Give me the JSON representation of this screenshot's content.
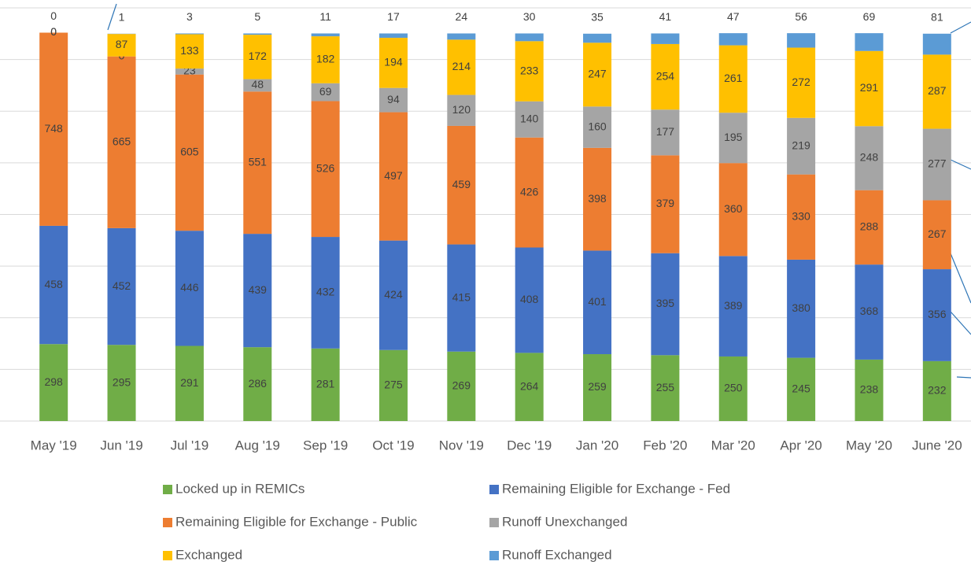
{
  "chart_data": {
    "type": "stacked_bar",
    "categories": [
      "May '19",
      "Jun '19",
      "Jul '19",
      "Aug '19",
      "Sep '19",
      "Oct '19",
      "Nov '19",
      "Dec '19",
      "Jan '20",
      "Feb '20",
      "Mar '20",
      "Apr '20",
      "May '20",
      "June '20"
    ],
    "series": [
      {
        "name": "Locked up in REMICs",
        "color": "#70ad47",
        "values": [
          298,
          295,
          291,
          286,
          281,
          275,
          269,
          264,
          259,
          255,
          250,
          245,
          238,
          232
        ]
      },
      {
        "name": "Remaining Eligible for Exchange - Fed",
        "color": "#4472c4",
        "values": [
          458,
          452,
          446,
          439,
          432,
          424,
          415,
          408,
          401,
          395,
          389,
          380,
          368,
          356
        ]
      },
      {
        "name": "Remaining Eligible for Exchange - Public",
        "color": "#ed7d31",
        "values": [
          748,
          665,
          605,
          551,
          526,
          497,
          459,
          426,
          398,
          379,
          360,
          330,
          288,
          267
        ]
      },
      {
        "name": "Runoff Unexchanged",
        "color": "#a5a5a5",
        "values": [
          0,
          0,
          23,
          48,
          69,
          94,
          120,
          140,
          160,
          177,
          195,
          219,
          248,
          277
        ]
      },
      {
        "name": "Exchanged",
        "color": "#ffc000",
        "values": [
          0,
          87,
          133,
          172,
          182,
          194,
          214,
          233,
          247,
          254,
          261,
          272,
          291,
          287
        ]
      },
      {
        "name": "Runoff Exchanged",
        "color": "#5b9bd5",
        "values": [
          0,
          1,
          3,
          5,
          11,
          17,
          24,
          30,
          35,
          41,
          47,
          56,
          69,
          81
        ]
      }
    ],
    "ylim": [
      0,
      1600
    ],
    "yticks": [
      0,
      200,
      400,
      600,
      800,
      1000,
      1200,
      1400,
      1600
    ],
    "grid": true
  }
}
